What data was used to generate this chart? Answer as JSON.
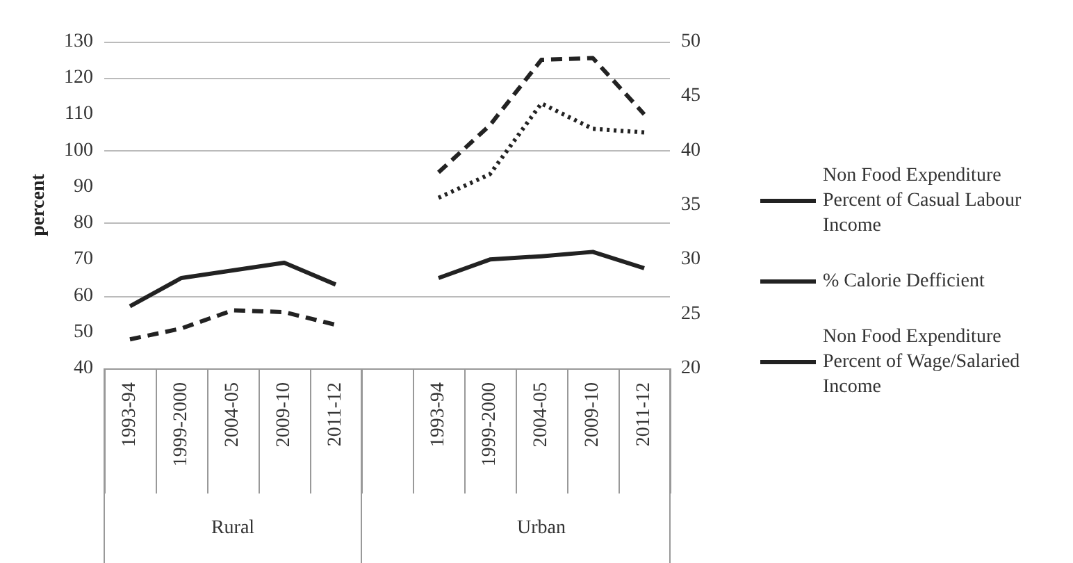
{
  "chart_data": {
    "type": "line",
    "ylabel": "percent",
    "categories": [
      "1993-94",
      "1999-2000",
      "2004-05",
      "2009-10",
      "2011-12",
      null,
      "1993-94",
      "1999-2000",
      "2004-05",
      "2009-10",
      "2011-12"
    ],
    "annotations": [
      "Rural",
      "Urban"
    ],
    "series": [
      {
        "name": "Non Food Expenditure Percent of Casual Labour Income",
        "color": "#222222",
        "line_style": "dashed",
        "values": [
          48,
          51,
          56,
          55.5,
          52,
          null,
          94,
          107,
          125,
          125.5,
          110
        ]
      },
      {
        "name": "% Calorie Defficient",
        "color": "#222222",
        "line_style": "solid",
        "axis": "y2",
        "values": [
          25.7,
          28.3,
          29,
          29.7,
          27.7,
          null,
          28.3,
          30,
          30.3,
          30.7,
          29.2
        ]
      },
      {
        "name": "Non Food Expenditure Percent of Wage/Salaried Income",
        "color": "#222222",
        "line_style": "dotted",
        "values": [
          null,
          null,
          null,
          null,
          null,
          null,
          87,
          93.5,
          113,
          106,
          105
        ]
      }
    ],
    "ylim": [
      40,
      130
    ],
    "yticks": [
      40,
      50,
      60,
      70,
      80,
      90,
      100,
      110,
      120,
      130
    ],
    "y2lim": [
      20,
      50
    ],
    "y2ticks": [
      20,
      25,
      30,
      35,
      40,
      45,
      50
    ],
    "grid": "y",
    "legend": "right",
    "marker": "none"
  }
}
